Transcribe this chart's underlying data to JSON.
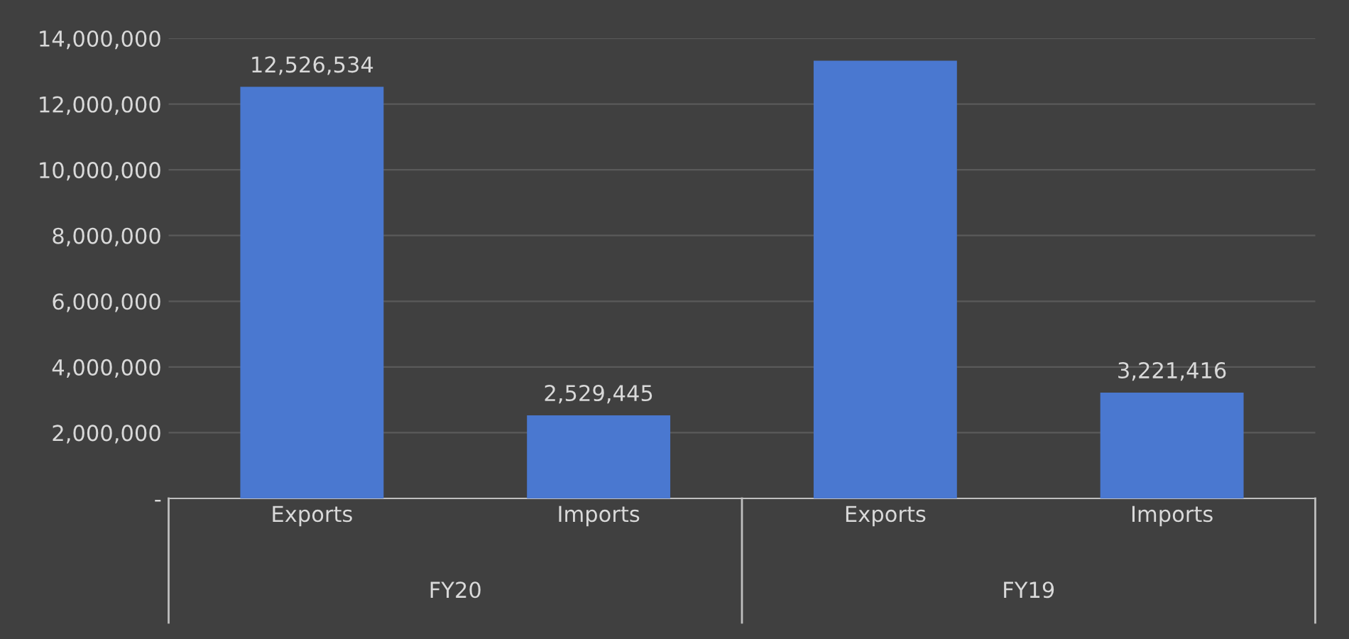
{
  "chart_data": {
    "type": "bar",
    "categories": [
      "Exports",
      "Imports",
      "Exports",
      "Imports"
    ],
    "annotations": [
      "FY20",
      "FY19"
    ],
    "values": [
      12526534,
      2529445,
      13320000,
      3221416
    ],
    "value_labels": [
      "12,526,534",
      "2,529,445",
      null,
      "3,221,416"
    ],
    "color": "#4a78d0",
    "ylim": [
      0,
      14000000
    ],
    "yticks": [
      {
        "value": 0,
        "label": "-"
      },
      {
        "value": 2000000,
        "label": "2,000,000"
      },
      {
        "value": 4000000,
        "label": "4,000,000"
      },
      {
        "value": 6000000,
        "label": "6,000,000"
      },
      {
        "value": 8000000,
        "label": "8,000,000"
      },
      {
        "value": 10000000,
        "label": "10,000,000"
      },
      {
        "value": 12000000,
        "label": "12,000,000"
      },
      {
        "value": 14000000,
        "label": "14,000,000"
      }
    ],
    "grid": "y"
  }
}
